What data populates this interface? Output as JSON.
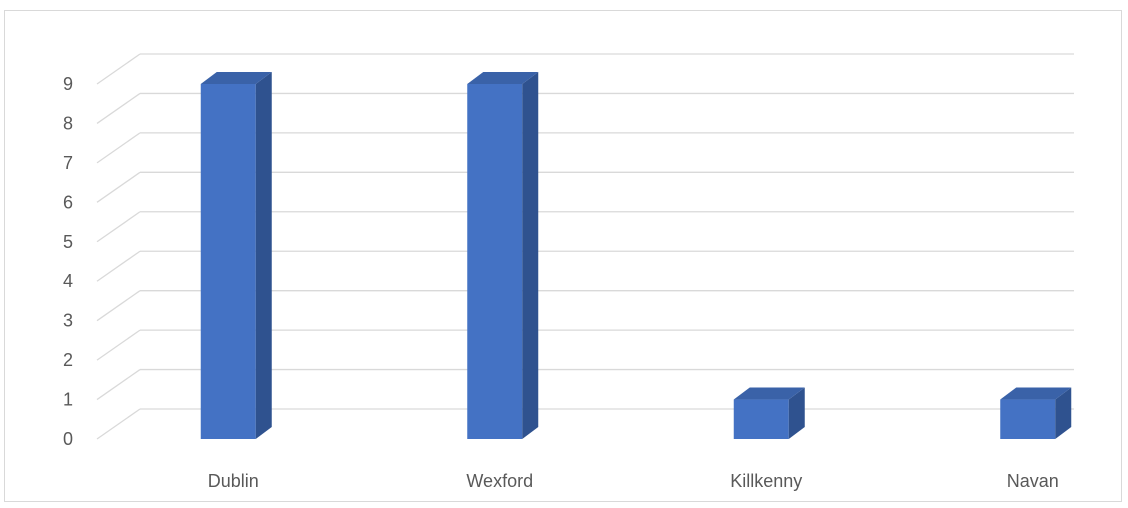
{
  "chart_data": {
    "type": "bar",
    "style": "3d-clustered-column",
    "categories": [
      "Dublin",
      "Wexford",
      "Killkenny",
      "Navan"
    ],
    "values": [
      9,
      9,
      1,
      1
    ],
    "title": "",
    "xlabel": "",
    "ylabel": "",
    "ylim": [
      0,
      9
    ],
    "yticks": [
      "0",
      "1",
      "2",
      "3",
      "4",
      "5",
      "6",
      "7",
      "8",
      "9"
    ],
    "grid": true,
    "legend": "none",
    "colors": {
      "bar_front": "#4472c4",
      "bar_side": "#2f528f",
      "bar_top": "#3a62a8",
      "gridline": "#d9d9d9",
      "text": "#595959"
    }
  }
}
